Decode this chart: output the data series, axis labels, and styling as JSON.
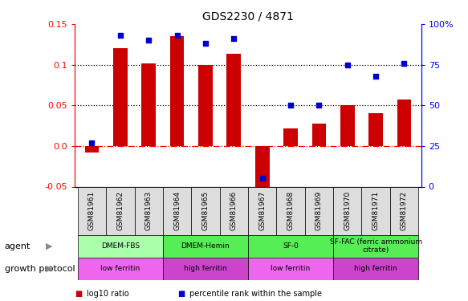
{
  "title": "GDS2230 / 4871",
  "samples": [
    "GSM81961",
    "GSM81962",
    "GSM81963",
    "GSM81964",
    "GSM81965",
    "GSM81966",
    "GSM81967",
    "GSM81968",
    "GSM81969",
    "GSM81970",
    "GSM81971",
    "GSM81972"
  ],
  "log10_ratio": [
    -0.008,
    0.12,
    0.102,
    0.135,
    0.1,
    0.113,
    -0.065,
    0.022,
    0.028,
    0.05,
    0.04,
    0.057
  ],
  "percentile_rank": [
    27,
    93,
    90,
    93,
    88,
    91,
    5,
    50,
    50,
    75,
    68,
    76
  ],
  "ylim_left": [
    -0.05,
    0.15
  ],
  "ylim_right": [
    0,
    100
  ],
  "yticks_left": [
    -0.05,
    0.0,
    0.05,
    0.1,
    0.15
  ],
  "yticks_right": [
    0,
    25,
    50,
    75,
    100
  ],
  "hlines_dotted": [
    0.05,
    0.1
  ],
  "bar_color": "#CC0000",
  "dot_color": "#0000CC",
  "bar_width": 0.5,
  "agent_groups": [
    {
      "label": "DMEM-FBS",
      "start": 0,
      "end": 3,
      "color": "#AAFFAA"
    },
    {
      "label": "DMEM-Hemin",
      "start": 3,
      "end": 6,
      "color": "#55EE55"
    },
    {
      "label": "SF-0",
      "start": 6,
      "end": 9,
      "color": "#55EE55"
    },
    {
      "label": "SF-FAC (ferric ammonium\ncitrate)",
      "start": 9,
      "end": 12,
      "color": "#55EE55"
    }
  ],
  "growth_groups": [
    {
      "label": "low ferritin",
      "start": 0,
      "end": 3,
      "color": "#EE66EE"
    },
    {
      "label": "high ferritin",
      "start": 3,
      "end": 6,
      "color": "#CC44CC"
    },
    {
      "label": "low ferritin",
      "start": 6,
      "end": 9,
      "color": "#EE66EE"
    },
    {
      "label": "high ferritin",
      "start": 9,
      "end": 12,
      "color": "#CC44CC"
    }
  ],
  "legend_items": [
    {
      "label": "log10 ratio",
      "color": "#CC0000"
    },
    {
      "label": "percentile rank within the sample",
      "color": "#0000CC"
    }
  ],
  "agent_label": "agent",
  "growth_label": "growth protocol",
  "bg_color": "#FFFFFF",
  "tick_label_bg": "#DDDDDD"
}
